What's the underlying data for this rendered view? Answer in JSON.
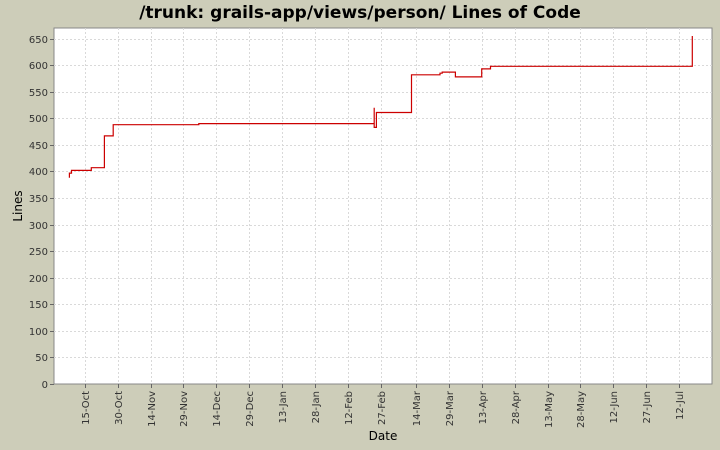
{
  "chart_data": {
    "type": "line",
    "title": "/trunk: grails-app/views/person/ Lines of Code",
    "xlabel": "Date",
    "ylabel": "Lines",
    "ylim": [
      0,
      670
    ],
    "yticks": [
      0,
      50,
      100,
      150,
      200,
      250,
      300,
      350,
      400,
      450,
      500,
      550,
      600,
      650
    ],
    "xlim": [
      "2007-10-01",
      "2008-07-27"
    ],
    "xticks": [
      {
        "label": "15-Oct",
        "date": "2007-10-15"
      },
      {
        "label": "30-Oct",
        "date": "2007-10-30"
      },
      {
        "label": "14-Nov",
        "date": "2007-11-14"
      },
      {
        "label": "29-Nov",
        "date": "2007-11-29"
      },
      {
        "label": "14-Dec",
        "date": "2007-12-14"
      },
      {
        "label": "29-Dec",
        "date": "2007-12-29"
      },
      {
        "label": "13-Jan",
        "date": "2008-01-13"
      },
      {
        "label": "28-Jan",
        "date": "2008-01-28"
      },
      {
        "label": "12-Feb",
        "date": "2008-02-12"
      },
      {
        "label": "27-Feb",
        "date": "2008-02-27"
      },
      {
        "label": "14-Mar",
        "date": "2008-03-14"
      },
      {
        "label": "29-Mar",
        "date": "2008-03-29"
      },
      {
        "label": "13-Apr",
        "date": "2008-04-13"
      },
      {
        "label": "28-Apr",
        "date": "2008-04-28"
      },
      {
        "label": "13-May",
        "date": "2008-05-13"
      },
      {
        "label": "28-May",
        "date": "2008-05-28"
      },
      {
        "label": "12-Jun",
        "date": "2008-06-12"
      },
      {
        "label": "27-Jun",
        "date": "2008-06-27"
      },
      {
        "label": "12-Jul",
        "date": "2008-07-12"
      }
    ],
    "grid": true,
    "colors": {
      "background": "#cdcdb9",
      "plot": "#ffffff",
      "grid": "#d9d9d9",
      "series": "#cc0000"
    },
    "series": [
      {
        "points": [
          [
            "2007-10-08",
            388
          ],
          [
            "2007-10-08",
            397
          ],
          [
            "2007-10-09",
            397
          ],
          [
            "2007-10-09",
            402
          ],
          [
            "2007-10-18",
            402
          ],
          [
            "2007-10-18",
            407
          ],
          [
            "2007-10-24",
            407
          ],
          [
            "2007-10-24",
            467
          ],
          [
            "2007-10-28",
            467
          ],
          [
            "2007-10-28",
            488
          ],
          [
            "2007-12-06",
            488
          ],
          [
            "2007-12-06",
            490
          ],
          [
            "2008-02-24",
            490
          ],
          [
            "2008-02-24",
            520
          ],
          [
            "2008-02-24",
            483
          ],
          [
            "2008-02-25",
            483
          ],
          [
            "2008-02-25",
            511
          ],
          [
            "2008-03-12",
            511
          ],
          [
            "2008-03-12",
            582
          ],
          [
            "2008-03-25",
            582
          ],
          [
            "2008-03-25",
            585
          ],
          [
            "2008-03-26",
            585
          ],
          [
            "2008-03-26",
            587
          ],
          [
            "2008-04-01",
            587
          ],
          [
            "2008-04-01",
            578
          ],
          [
            "2008-04-13",
            578
          ],
          [
            "2008-04-13",
            593
          ],
          [
            "2008-04-17",
            593
          ],
          [
            "2008-04-17",
            598
          ],
          [
            "2008-07-18",
            598
          ],
          [
            "2008-07-18",
            655
          ]
        ]
      }
    ]
  }
}
